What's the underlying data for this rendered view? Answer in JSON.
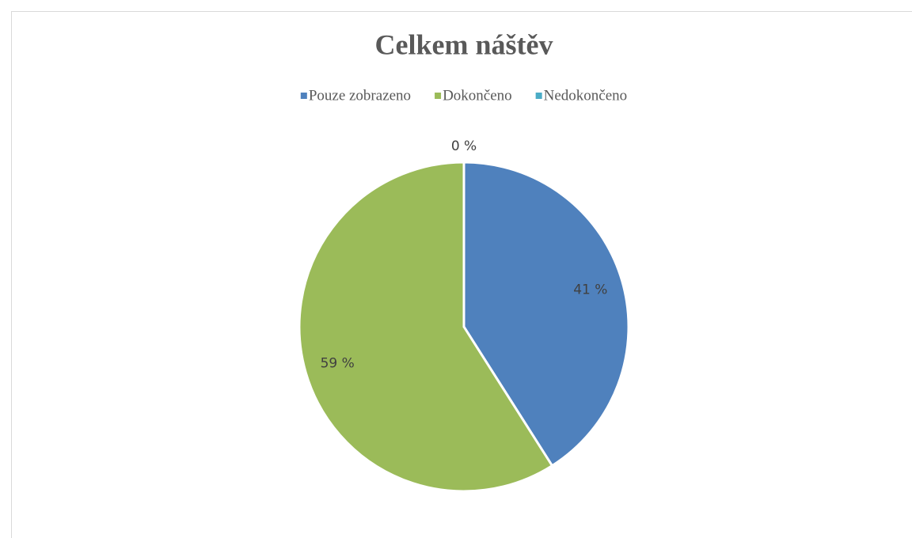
{
  "chart_data": {
    "type": "pie",
    "title": "Celkem náštěv",
    "categories": [
      "Pouze zobrazeno",
      "Dokončeno",
      "Nedokončeno"
    ],
    "values": [
      41,
      59,
      0
    ],
    "value_labels": [
      "41 %",
      "59 %",
      "0 %"
    ],
    "colors": [
      "#4f81bd",
      "#9bbb59",
      "#4bacc6"
    ],
    "legend": "top"
  }
}
